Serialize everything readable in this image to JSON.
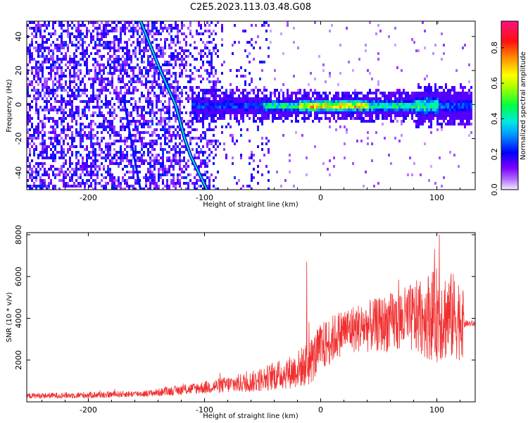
{
  "title": "C2E5.2023.113.03.48.G08",
  "chart_data": [
    {
      "type": "heatmap",
      "name": "spectrogram",
      "xlabel": "Height of straight line (km)",
      "ylabel": "Frequency (Hz)",
      "xlim": [
        -253,
        133
      ],
      "ylim": [
        -50,
        49
      ],
      "xticks": [
        -200,
        -100,
        0,
        100
      ],
      "yticks": [
        -40,
        -20,
        0,
        20,
        40
      ],
      "colorbar": {
        "label": "Normalized spectral amplitude",
        "range": [
          0.0,
          0.95
        ],
        "ticks": [
          0.0,
          0.2,
          0.4,
          0.6,
          0.8
        ],
        "colors": [
          "#e8d8f8",
          "#7a00ff",
          "#0000ff",
          "#00e0ff",
          "#00ff20",
          "#ffff00",
          "#ff2000",
          "#ff0080"
        ]
      },
      "noise_region": {
        "x_range": [
          -253,
          -45
        ],
        "freq_range": [
          -50,
          49
        ],
        "amplitude": [
          0.05,
          0.25
        ]
      },
      "signal_band": {
        "x_range": [
          -112,
          130
        ],
        "center_freq": 0,
        "half_width_hz": 4,
        "amplitude_peak": 0.9,
        "peak_x_range": [
          -20,
          40
        ]
      },
      "chirp_line": {
        "points": [
          [
            -155,
            49
          ],
          [
            -138,
            20
          ],
          [
            -125,
            0
          ],
          [
            -117,
            -20
          ],
          [
            -112,
            -30
          ],
          [
            -98,
            -50
          ]
        ]
      },
      "ghost_line": {
        "points": [
          [
            -170,
            5
          ],
          [
            -158,
            -40
          ],
          [
            -155,
            -50
          ]
        ]
      },
      "grid": false
    },
    {
      "type": "line",
      "name": "snr",
      "xlabel": "Height of straight line (km)",
      "ylabel": "SNR (10 * v/v)",
      "xlim": [
        -253,
        133
      ],
      "ylim": [
        0,
        8100
      ],
      "xticks": [
        -200,
        -100,
        0,
        100
      ],
      "yticks": [
        2000,
        4000,
        6000,
        8000
      ],
      "color": "#f03030",
      "grid": false,
      "envelope": [
        {
          "x": -253,
          "base": 250,
          "spread": 250
        },
        {
          "x": -200,
          "base": 280,
          "spread": 300
        },
        {
          "x": -150,
          "base": 350,
          "spread": 300
        },
        {
          "x": -100,
          "base": 600,
          "spread": 600
        },
        {
          "x": -60,
          "base": 800,
          "spread": 1000
        },
        {
          "x": -25,
          "base": 1200,
          "spread": 1600
        },
        {
          "x": -10,
          "base": 1500,
          "spread": 2200
        },
        {
          "x": 0,
          "base": 2200,
          "spread": 2400
        },
        {
          "x": 20,
          "base": 3100,
          "spread": 2200
        },
        {
          "x": 50,
          "base": 3300,
          "spread": 2600
        },
        {
          "x": 80,
          "base": 3500,
          "spread": 3400
        },
        {
          "x": 100,
          "base": 3500,
          "spread": 4600
        },
        {
          "x": 122,
          "base": 3400,
          "spread": 4000
        },
        {
          "x": 124,
          "base": 3700,
          "spread": 300
        },
        {
          "x": 133,
          "base": 3700,
          "spread": 300
        }
      ],
      "spikes": [
        {
          "x": -12,
          "y": 6700
        },
        {
          "x": -10,
          "y": 3800
        },
        {
          "x": 102,
          "y": 8000
        },
        {
          "x": 98,
          "y": 7300
        }
      ]
    }
  ]
}
